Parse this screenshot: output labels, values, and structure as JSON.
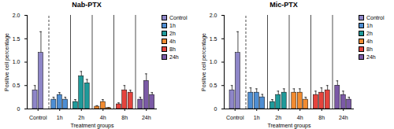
{
  "chart_data": [
    {
      "type": "bar",
      "title": "Nab-PTX",
      "x_label": "Treatment groups",
      "y_label": "Positive cell percentage",
      "legend": "right",
      "ylim": [
        0,
        2
      ],
      "yticks": [
        0,
        {
          "value": 0.5,
          "label": "0.5"
        },
        {
          "value": 1,
          "label": "1.0"
        },
        {
          "value": 1.5,
          "label": "1.5"
        },
        {
          "value": 2,
          "label": "2.0"
        }
      ],
      "groups": [
        {
          "name": "Control",
          "color": "#8e86c8",
          "values": [
            0.4,
            1.2
          ],
          "errors": [
            0.1,
            0.45
          ]
        },
        {
          "name": "1h",
          "color": "#4e8ed3",
          "values": [
            0.2,
            0.3,
            0.2
          ],
          "errors": [
            0.05,
            0.05,
            0.05
          ]
        },
        {
          "name": "2h",
          "color": "#1f9a9a",
          "values": [
            0.15,
            0.7,
            0.55
          ],
          "errors": [
            0.05,
            0.1,
            0.08
          ]
        },
        {
          "name": "4h",
          "color": "#f28b30",
          "values": [
            0.05,
            0.15,
            0.02
          ],
          "errors": [
            0.02,
            0.05,
            0.01
          ]
        },
        {
          "name": "8h",
          "color": "#e5443d",
          "values": [
            0.1,
            0.4,
            0.35
          ],
          "errors": [
            0.03,
            0.1,
            0.05
          ]
        },
        {
          "name": "24h",
          "color": "#7b5aa6",
          "values": [
            0.2,
            0.6,
            0.3
          ],
          "errors": [
            0.05,
            0.15,
            0.05
          ]
        }
      ]
    },
    {
      "type": "bar",
      "title": "Mic-PTX",
      "x_label": "Treatment groups",
      "y_label": "Positive cell percentage",
      "legend": "right",
      "ylim": [
        0,
        2
      ],
      "yticks": [
        0,
        {
          "value": 0.5,
          "label": "0.5"
        },
        {
          "value": 1,
          "label": "1.0"
        },
        {
          "value": 1.5,
          "label": "1.5"
        },
        {
          "value": 2,
          "label": "2.0"
        }
      ],
      "groups": [
        {
          "name": "Control",
          "color": "#8e86c8",
          "values": [
            0.4,
            1.2
          ],
          "errors": [
            0.1,
            0.45
          ]
        },
        {
          "name": "1h",
          "color": "#4e8ed3",
          "values": [
            0.35,
            0.35,
            0.25
          ],
          "errors": [
            0.1,
            0.08,
            0.06
          ]
        },
        {
          "name": "2h",
          "color": "#1f9a9a",
          "values": [
            0.15,
            0.3,
            0.35
          ],
          "errors": [
            0.05,
            0.08,
            0.08
          ]
        },
        {
          "name": "4h",
          "color": "#f28b30",
          "values": [
            0.35,
            0.35,
            0.2
          ],
          "errors": [
            0.08,
            0.08,
            0.05
          ]
        },
        {
          "name": "8h",
          "color": "#e5443d",
          "values": [
            0.3,
            0.35,
            0.4
          ],
          "errors": [
            0.08,
            0.1,
            0.1
          ]
        },
        {
          "name": "24h",
          "color": "#7b5aa6",
          "values": [
            0.5,
            0.3,
            0.2
          ],
          "errors": [
            0.1,
            0.08,
            0.05
          ]
        }
      ]
    }
  ]
}
